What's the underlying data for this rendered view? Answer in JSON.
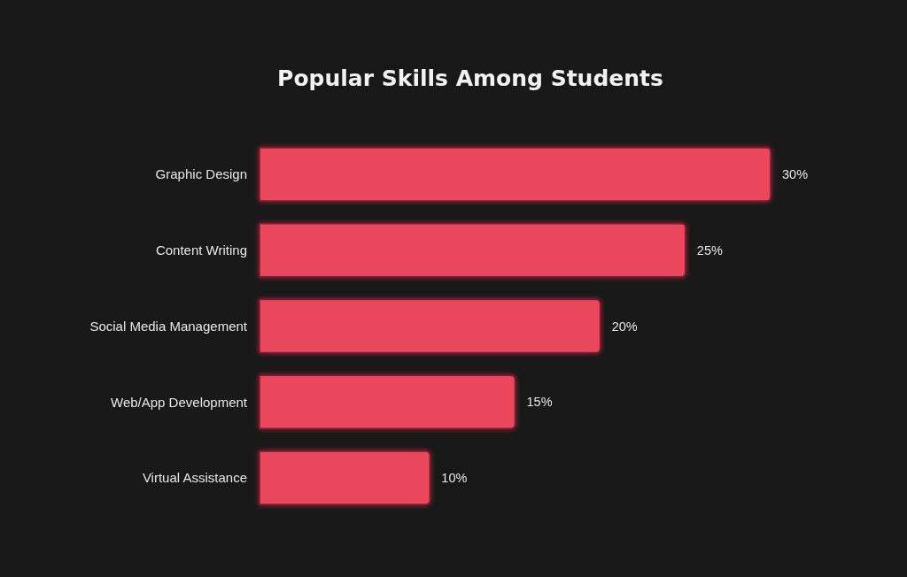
{
  "chart_data": {
    "type": "bar",
    "orientation": "horizontal",
    "title": "Popular Skills Among Students",
    "categories": [
      "Graphic Design",
      "Content Writing",
      "Social Media Management",
      "Web/App Development",
      "Virtual Assistance"
    ],
    "values": [
      30,
      25,
      20,
      15,
      10
    ],
    "color": "#e8465c",
    "value_labels": [
      "30%",
      "25%",
      "20%",
      "15%",
      "10%"
    ]
  }
}
